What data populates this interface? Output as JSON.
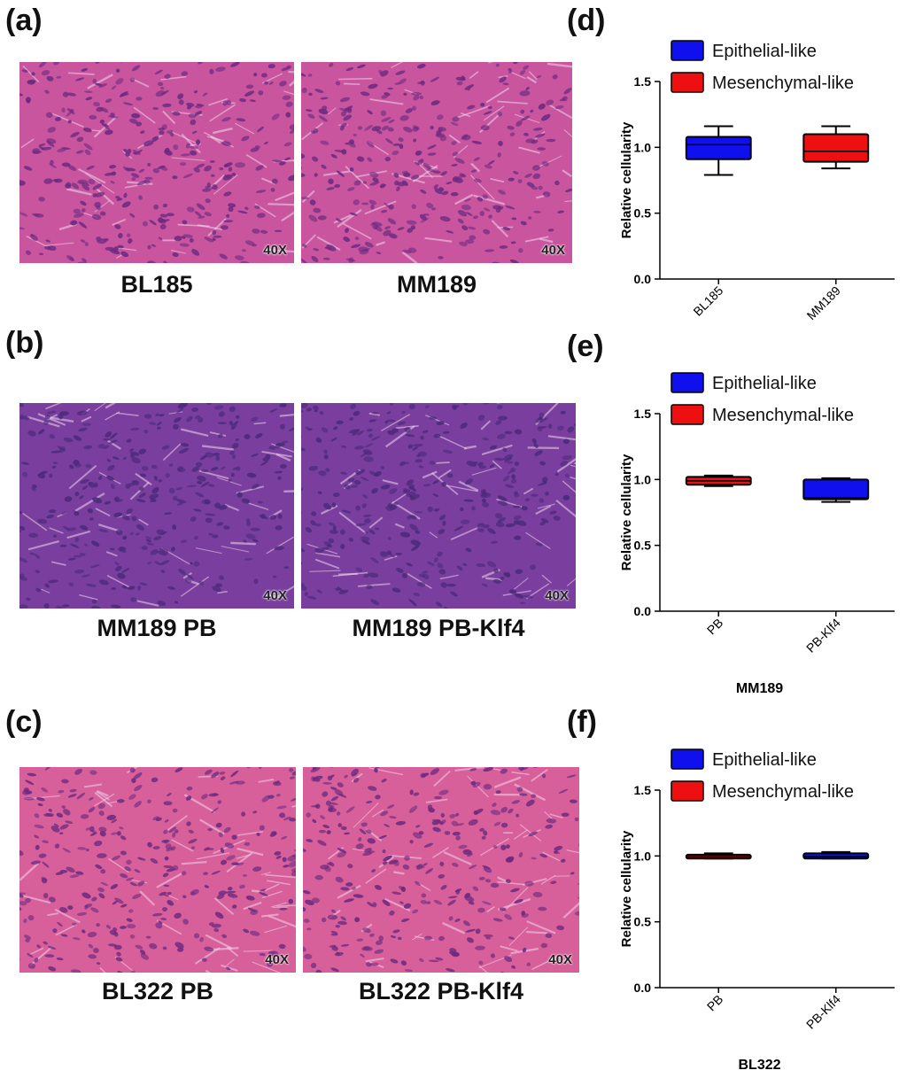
{
  "panels": {
    "a": {
      "letter": "(a)",
      "left_caption": "BL185",
      "right_caption": "MM189",
      "magnification": "40X"
    },
    "b": {
      "letter": "(b)",
      "left_caption": "MM189 PB",
      "right_caption": "MM189 PB-Klf4",
      "magnification": "40X"
    },
    "c": {
      "letter": "(c)",
      "left_caption": "BL322 PB",
      "right_caption": "BL322 PB-Klf4",
      "magnification": "40X"
    },
    "d": {
      "letter": "(d)"
    },
    "e": {
      "letter": "(e)"
    },
    "f": {
      "letter": "(f)"
    }
  },
  "colors": {
    "epithelial": "#1010ee",
    "mesenchymal": "#ee1010",
    "stain_pink": "#c8559e",
    "stain_purple": "#7a3f9e",
    "stain_red_pink": "#d8609a"
  },
  "chart_data": [
    {
      "panel": "(d)",
      "type": "boxplot",
      "ylabel": "Relative cellularity",
      "xlabel": "",
      "ylim": [
        0.0,
        1.5
      ],
      "yticks": [
        "0.0",
        "0.5",
        "1.0",
        "1.5"
      ],
      "categories": [
        "BL185",
        "MM189"
      ],
      "legend": [
        "Epithelial-like",
        "Mesenchymal-like"
      ],
      "boxes": [
        {
          "category": "BL185",
          "series": "Epithelial-like",
          "min": 0.79,
          "q1": 0.91,
          "median": 1.02,
          "q3": 1.08,
          "max": 1.16
        },
        {
          "category": "MM189",
          "series": "Mesenchymal-like",
          "min": 0.84,
          "q1": 0.89,
          "median": 0.97,
          "q3": 1.1,
          "max": 1.16
        }
      ]
    },
    {
      "panel": "(e)",
      "type": "boxplot",
      "ylabel": "Relative cellularity",
      "xlabel": "MM189",
      "ylim": [
        0.0,
        1.5
      ],
      "yticks": [
        "0.0",
        "0.5",
        "1.0",
        "1.5"
      ],
      "categories": [
        "PB",
        "PB-Klf4"
      ],
      "legend": [
        "Epithelial-like",
        "Mesenchymal-like"
      ],
      "boxes": [
        {
          "category": "PB",
          "series": "Mesenchymal-like",
          "min": 0.95,
          "q1": 0.96,
          "median": 0.99,
          "q3": 1.02,
          "max": 1.03
        },
        {
          "category": "PB-Klf4",
          "series": "Epithelial-like",
          "min": 0.83,
          "q1": 0.85,
          "median": 0.86,
          "q3": 1.0,
          "max": 1.01
        }
      ]
    },
    {
      "panel": "(f)",
      "type": "boxplot",
      "ylabel": "Relative cellularity",
      "xlabel": "BL322",
      "ylim": [
        0.0,
        1.5
      ],
      "yticks": [
        "0.0",
        "0.5",
        "1.0",
        "1.5"
      ],
      "categories": [
        "PB",
        "PB-Klf4"
      ],
      "legend": [
        "Epithelial-like",
        "Mesenchymal-like"
      ],
      "boxes": [
        {
          "category": "PB",
          "series": "Mesenchymal-like",
          "min": 0.98,
          "q1": 0.98,
          "median": 0.995,
          "q3": 1.01,
          "max": 1.02
        },
        {
          "category": "PB-Klf4",
          "series": "Epithelial-like",
          "min": 0.98,
          "q1": 0.98,
          "median": 0.995,
          "q3": 1.02,
          "max": 1.03
        }
      ]
    }
  ]
}
